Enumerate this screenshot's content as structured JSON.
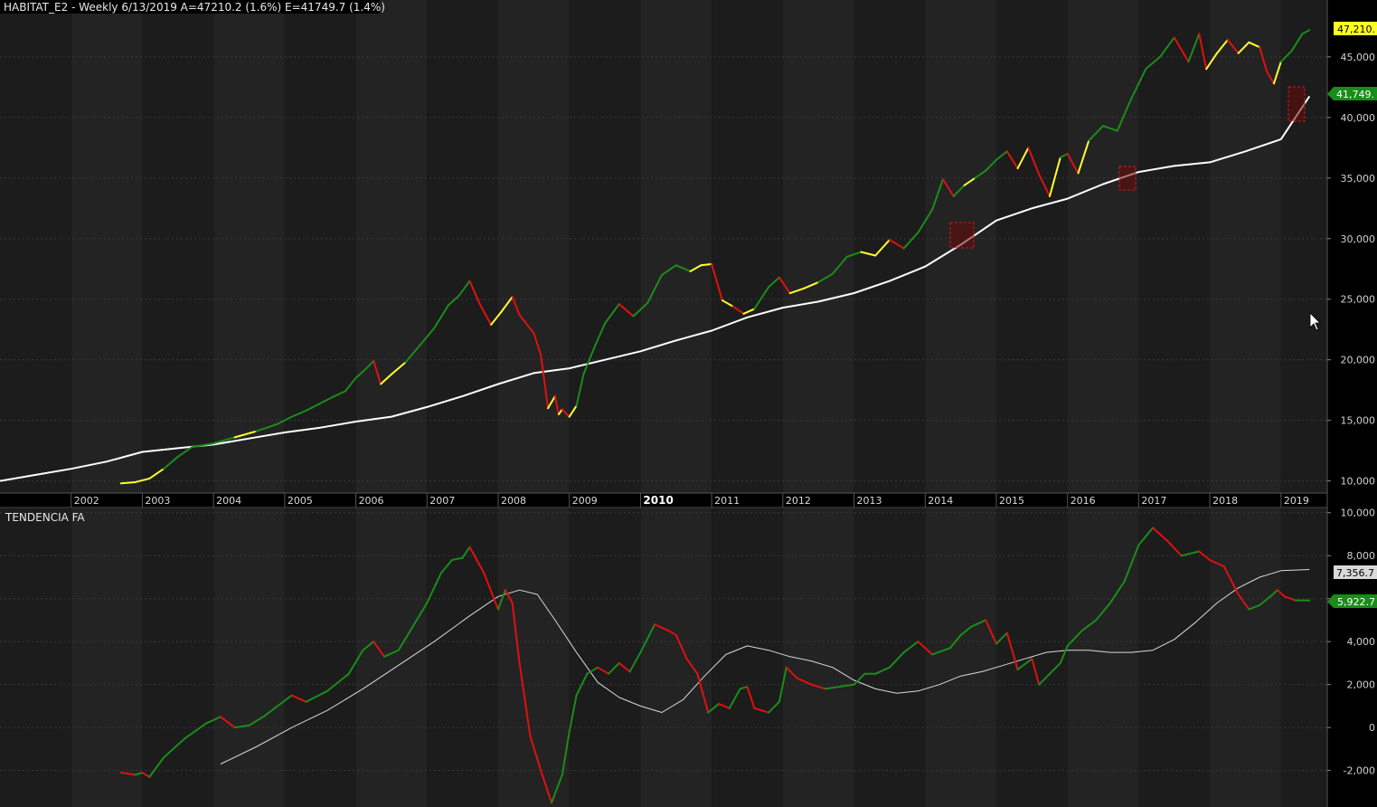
{
  "header": {
    "title": "HABITAT_E2 - Weekly 6/13/2019 A=47210.2 (1.6%) E=41749.7 (1.4%)"
  },
  "lower_panel": {
    "title": "TENDENCIA FA"
  },
  "colors": {
    "background": "#000000",
    "band_dark": "#1c1c1c",
    "band_light": "#232323",
    "grid": "#3a3a3a",
    "up": "#1a8c1a",
    "down": "#e01010",
    "neutral": "#ffff33",
    "benchmark": "#ffffff",
    "signal_line": "#d9d9d9"
  },
  "tags": {
    "price": "47,210.",
    "benchmark": "41,749.",
    "signal": "7,356.7",
    "oscillator": "5,922.7"
  },
  "chart_data": [
    {
      "type": "line",
      "title": "HABITAT_E2 - Weekly 6/13/2019 A=47210.2 (1.6%) E=41749.7 (1.4%)",
      "x_tick_labels": [
        "2002",
        "2003",
        "2004",
        "2005",
        "2006",
        "2007",
        "2008",
        "2009",
        "2010",
        "2011",
        "2012",
        "2013",
        "2014",
        "2015",
        "2016",
        "2017",
        "2018",
        "2019"
      ],
      "y_tick_labels": [
        "45,000",
        "40,000",
        "35,000",
        "30,000",
        "25,000",
        "20,000",
        "15,000",
        "10,000"
      ],
      "ylim": [
        9000,
        48500
      ],
      "xlim": [
        2001.0,
        2019.65
      ],
      "grid": true,
      "series": [
        {
          "color_coding": "green = rising trend, red = falling, yellow = neutral",
          "x": [
            2002.7,
            2002.9,
            2003.1,
            2003.3,
            2003.5,
            2003.7,
            2004.0,
            2004.3,
            2004.6,
            2004.9,
            2005.1,
            2005.3,
            2005.5,
            2005.7,
            2005.85,
            2006.0,
            2006.15,
            2006.25,
            2006.35,
            2006.5,
            2006.7,
            2006.9,
            2007.1,
            2007.3,
            2007.45,
            2007.6,
            2007.75,
            2007.9,
            2008.05,
            2008.2,
            2008.3,
            2008.5,
            2008.6,
            2008.7,
            2008.8,
            2008.85,
            2008.9,
            2009.0,
            2009.1,
            2009.2,
            2009.35,
            2009.5,
            2009.7,
            2009.9,
            2010.1,
            2010.3,
            2010.5,
            2010.7,
            2010.85,
            2011.0,
            2011.15,
            2011.3,
            2011.45,
            2011.6,
            2011.8,
            2011.95,
            2012.1,
            2012.3,
            2012.5,
            2012.7,
            2012.9,
            2013.1,
            2013.3,
            2013.5,
            2013.7,
            2013.9,
            2014.1,
            2014.25,
            2014.4,
            2014.55,
            2014.7,
            2014.85,
            2015.0,
            2015.15,
            2015.3,
            2015.45,
            2015.6,
            2015.75,
            2015.9,
            2016.0,
            2016.15,
            2016.3,
            2016.5,
            2016.7,
            2016.9,
            2017.1,
            2017.3,
            2017.5,
            2017.7,
            2017.85,
            2017.95,
            2018.1,
            2018.25,
            2018.4,
            2018.55,
            2018.7,
            2018.8,
            2018.9,
            2019.0,
            2019.15,
            2019.3,
            2019.4
          ],
          "y": [
            9800,
            9900,
            10200,
            11000,
            12000,
            12800,
            13100,
            13600,
            14100,
            14700,
            15300,
            15800,
            16400,
            17000,
            17400,
            18500,
            19300,
            19900,
            18000,
            18800,
            19800,
            21200,
            22600,
            24500,
            25300,
            26500,
            24500,
            22900,
            24000,
            25200,
            23700,
            22200,
            20400,
            16000,
            17000,
            15500,
            15900,
            15300,
            16200,
            18800,
            21000,
            23000,
            24600,
            23600,
            24700,
            27000,
            27800,
            27300,
            27800,
            27900,
            24900,
            24400,
            23800,
            24200,
            26000,
            26800,
            25500,
            25900,
            26400,
            27100,
            28500,
            28900,
            28600,
            29900,
            29200,
            30500,
            32400,
            34900,
            33500,
            34400,
            35000,
            35600,
            36500,
            37200,
            35800,
            37500,
            35300,
            33500,
            36700,
            37000,
            35400,
            38100,
            39300,
            38900,
            41600,
            44000,
            45000,
            46600,
            44600,
            46900,
            44000,
            45300,
            46400,
            45300,
            46200,
            45800,
            43800,
            42800,
            44600,
            45500,
            46900,
            47210
          ]
        },
        {
          "color_coding": "white (benchmark)",
          "x": [
            2001.0,
            2001.5,
            2002.0,
            2002.5,
            2003.0,
            2003.5,
            2004.0,
            2004.5,
            2005.0,
            2005.5,
            2006.0,
            2006.5,
            2007.0,
            2007.5,
            2008.0,
            2008.5,
            2009.0,
            2009.5,
            2010.0,
            2010.5,
            2011.0,
            2011.5,
            2012.0,
            2012.5,
            2013.0,
            2013.5,
            2014.0,
            2014.5,
            2015.0,
            2015.5,
            2016.0,
            2016.5,
            2017.0,
            2017.5,
            2018.0,
            2018.5,
            2019.0,
            2019.4
          ],
          "y": [
            10000,
            10500,
            11000,
            11600,
            12400,
            12700,
            13000,
            13500,
            14000,
            14400,
            14900,
            15300,
            16100,
            17000,
            18000,
            18900,
            19300,
            20000,
            20700,
            21600,
            22400,
            23500,
            24300,
            24800,
            25500,
            26500,
            27700,
            29500,
            31500,
            32500,
            33300,
            34500,
            35500,
            36000,
            36300,
            37200,
            38200,
            41749
          ]
        }
      ]
    },
    {
      "type": "line",
      "title": "TENDENCIA FA",
      "y_tick_labels": [
        "10,000",
        "8,000",
        "6,000",
        "4,000",
        "2,000",
        "0",
        "-2,000"
      ],
      "ylim": [
        -3700,
        10200
      ],
      "grid": true,
      "series": [
        {
          "color_coding": "green = rising, red = falling",
          "x": [
            2002.7,
            2002.9,
            2003.0,
            2003.1,
            2003.3,
            2003.6,
            2003.9,
            2004.1,
            2004.3,
            2004.5,
            2004.7,
            2004.9,
            2005.1,
            2005.3,
            2005.6,
            2005.9,
            2006.1,
            2006.25,
            2006.4,
            2006.6,
            2006.8,
            2007.0,
            2007.2,
            2007.35,
            2007.5,
            2007.6,
            2007.8,
            2008.0,
            2008.1,
            2008.2,
            2008.3,
            2008.45,
            2008.6,
            2008.75,
            2008.9,
            2009.0,
            2009.1,
            2009.25,
            2009.4,
            2009.55,
            2009.7,
            2009.85,
            2010.0,
            2010.2,
            2010.4,
            2010.5,
            2010.65,
            2010.8,
            2010.95,
            2011.1,
            2011.25,
            2011.4,
            2011.5,
            2011.6,
            2011.8,
            2011.95,
            2012.05,
            2012.2,
            2012.4,
            2012.6,
            2012.8,
            2013.0,
            2013.15,
            2013.3,
            2013.5,
            2013.7,
            2013.9,
            2014.1,
            2014.35,
            2014.5,
            2014.65,
            2014.85,
            2015.0,
            2015.15,
            2015.3,
            2015.5,
            2015.6,
            2015.75,
            2015.9,
            2016.0,
            2016.2,
            2016.4,
            2016.6,
            2016.8,
            2017.0,
            2017.2,
            2017.4,
            2017.6,
            2017.85,
            2018.0,
            2018.2,
            2018.4,
            2018.55,
            2018.7,
            2018.85,
            2018.95,
            2019.05,
            2019.2,
            2019.3,
            2019.4
          ],
          "y": [
            -2100,
            -2200,
            -2100,
            -2300,
            -1400,
            -500,
            200,
            500,
            0,
            100,
            500,
            1000,
            1500,
            1200,
            1700,
            2500,
            3600,
            4000,
            3300,
            3600,
            4700,
            5800,
            7200,
            7800,
            7900,
            8400,
            7200,
            5500,
            6400,
            5800,
            3000,
            -400,
            -2000,
            -3500,
            -2200,
            -200,
            1500,
            2500,
            2800,
            2500,
            3000,
            2600,
            3500,
            4800,
            4500,
            4300,
            3200,
            2500,
            700,
            1100,
            900,
            1800,
            1900,
            900,
            700,
            1200,
            2800,
            2300,
            2000,
            1800,
            1900,
            2000,
            2500,
            2500,
            2800,
            3500,
            4000,
            3400,
            3700,
            4300,
            4700,
            5000,
            3900,
            4400,
            2700,
            3200,
            2000,
            2500,
            3000,
            3800,
            4500,
            5000,
            5800,
            6800,
            8500,
            9300,
            8700,
            8000,
            8200,
            7800,
            7500,
            6200,
            5500,
            5700,
            6100,
            6400,
            6100,
            5922,
            5922,
            5922
          ]
        },
        {
          "color_coding": "white (signal average)",
          "x": [
            2004.1,
            2004.6,
            2005.1,
            2005.6,
            2006.1,
            2006.6,
            2007.1,
            2007.6,
            2008.0,
            2008.3,
            2008.55,
            2008.8,
            2009.1,
            2009.4,
            2009.7,
            2010.0,
            2010.3,
            2010.6,
            2010.9,
            2011.2,
            2011.5,
            2011.8,
            2012.1,
            2012.4,
            2012.7,
            2013.0,
            2013.3,
            2013.6,
            2013.9,
            2014.2,
            2014.5,
            2014.8,
            2015.1,
            2015.4,
            2015.7,
            2016.0,
            2016.3,
            2016.6,
            2016.9,
            2017.2,
            2017.5,
            2017.8,
            2018.1,
            2018.4,
            2018.7,
            2019.0,
            2019.4
          ],
          "y": [
            -1700,
            -900,
            0,
            800,
            1800,
            2900,
            4000,
            5200,
            6100,
            6400,
            6200,
            5000,
            3500,
            2100,
            1400,
            1000,
            700,
            1300,
            2400,
            3400,
            3800,
            3600,
            3300,
            3100,
            2800,
            2200,
            1800,
            1600,
            1700,
            2000,
            2400,
            2600,
            2900,
            3200,
            3500,
            3600,
            3600,
            3500,
            3500,
            3600,
            4100,
            4900,
            5800,
            6500,
            7000,
            7300,
            7357
          ]
        }
      ]
    }
  ]
}
